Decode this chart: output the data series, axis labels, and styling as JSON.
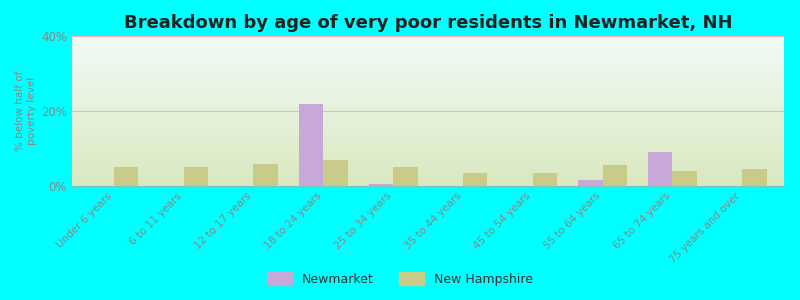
{
  "title": "Breakdown by age of very poor residents in Newmarket, NH",
  "ylabel": "% below half of\npoverty level",
  "categories": [
    "Under 6 years",
    "6 to 11 years",
    "12 to 17 years",
    "18 to 24 years",
    "25 to 34 years",
    "35 to 44 years",
    "45 to 54 years",
    "55 to 64 years",
    "65 to 74 years",
    "75 years and over"
  ],
  "newmarket_values": [
    0,
    0,
    0,
    22,
    0.5,
    0,
    0,
    1.5,
    9,
    0
  ],
  "nh_values": [
    5,
    5,
    6,
    7,
    5,
    3.5,
    3.5,
    5.5,
    4,
    4.5
  ],
  "newmarket_color": "#c8a8d8",
  "nh_color": "#c8cc88",
  "background_color": "#00ffff",
  "ylim": [
    0,
    40
  ],
  "yticks": [
    0,
    20,
    40
  ],
  "ytick_labels": [
    "0%",
    "20%",
    "40%"
  ],
  "bar_width": 0.35,
  "title_fontsize": 13,
  "legend_labels": [
    "Newmarket",
    "New Hampshire"
  ],
  "grid_color": "#ffb0b0",
  "tick_color": "#888888",
  "label_color": "#888888"
}
